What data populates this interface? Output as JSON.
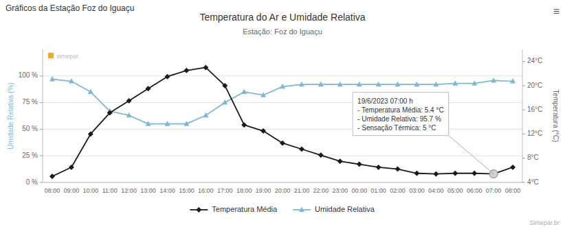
{
  "chart_data": {
    "type": "line",
    "title": "Temperatura do Ar e Umidade Relativa",
    "subtitle": "Estação: Foz do Iguaçu",
    "ylabel": "Umidade Relativa (%)",
    "y2label": "Temperatura (°C)",
    "categories": [
      "08:00",
      "09:00",
      "10:00",
      "11:00",
      "12:00",
      "13:00",
      "14:00",
      "15:00",
      "16:00",
      "17:00",
      "18:00",
      "19:00",
      "20:00",
      "21:00",
      "22:00",
      "23:00",
      "00:00",
      "01:00",
      "02:00",
      "03:00",
      "04:00",
      "05:00",
      "06:00",
      "07:00",
      "08:00"
    ],
    "series": [
      {
        "name": "Temperatura Média",
        "color": "#1a1a1a",
        "axis": "y2",
        "marker": "diamond",
        "values": [
          5.0,
          6.5,
          12.0,
          15.5,
          17.5,
          19.5,
          21.5,
          22.5,
          23.0,
          20.0,
          13.5,
          12.5,
          10.5,
          9.5,
          8.5,
          7.5,
          7.0,
          6.5,
          6.2,
          5.5,
          5.4,
          5.5,
          5.5,
          5.4,
          6.5
        ]
      },
      {
        "name": "Umidade Relativa",
        "color": "#7ab8d9",
        "marker": "triangle",
        "values": [
          97,
          95,
          85,
          67,
          63,
          55,
          55,
          55,
          63,
          75,
          85,
          82,
          90,
          92,
          92,
          92,
          92,
          92,
          92,
          92,
          92,
          93,
          93,
          95.7,
          95
        ]
      }
    ],
    "ylim": [
      0,
      125
    ],
    "yticks": [
      {
        "value": 0,
        "label": "0 %"
      },
      {
        "value": 25,
        "label": "25 %"
      },
      {
        "value": 50,
        "label": "50 %"
      },
      {
        "value": 75,
        "label": "75 %"
      },
      {
        "value": 100,
        "label": "100 %"
      }
    ],
    "y2lim": [
      4,
      26
    ],
    "y2ticks": [
      {
        "value": 4,
        "label": "4°C"
      },
      {
        "value": 8,
        "label": "8°C"
      },
      {
        "value": 12,
        "label": "12°C"
      },
      {
        "value": 16,
        "label": "16°C"
      },
      {
        "value": 20,
        "label": "20°C"
      },
      {
        "value": 24,
        "label": "24°C"
      }
    ],
    "grid": true,
    "legend": "bottom",
    "annotations": [
      {
        "text": "Gráficos da Estação Foz do Iguaçu"
      },
      {
        "text": "≡"
      },
      {
        "text": "simepar"
      },
      {
        "text": "19/6/2023 07:00 h\n- Temperatura Média: 5.4 °C\n- Umidade Relativa: 95.7 %\n- Sensação Térmica: 5 °C",
        "category": "07:00"
      },
      {
        "text": "Simepar.br"
      }
    ]
  }
}
